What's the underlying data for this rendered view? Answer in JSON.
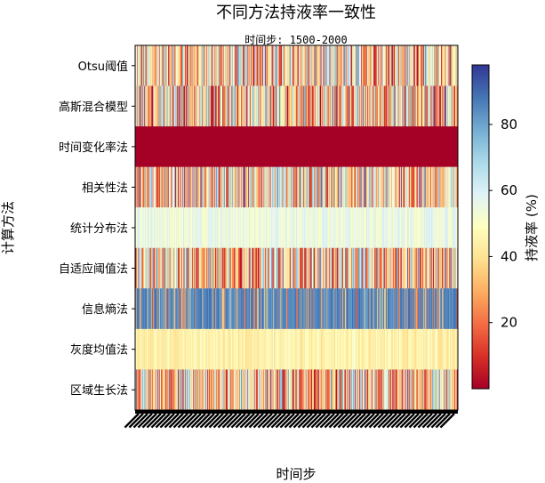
{
  "chart_data": {
    "type": "heatmap",
    "title": "不同方法持液率一致性",
    "subtitle": "时间步: 1500-2000",
    "xlabel": "时间步",
    "ylabel": "计算方法",
    "x_range": [
      1500,
      2000
    ],
    "rows": [
      {
        "label": "Otsu阈值",
        "pattern": "noisy",
        "approx_mean": 40
      },
      {
        "label": "高斯混合模型",
        "pattern": "noisy",
        "approx_mean": 40
      },
      {
        "label": "时间变化率法",
        "pattern": "uniform",
        "approx_mean": 0
      },
      {
        "label": "相关性法",
        "pattern": "noisy",
        "approx_mean": 40
      },
      {
        "label": "统计分布法",
        "pattern": "smooth",
        "approx_mean": 55
      },
      {
        "label": "自适应阈值法",
        "pattern": "noisy",
        "approx_mean": 40
      },
      {
        "label": "信息熵法",
        "pattern": "bimodal",
        "approx_mean": 85
      },
      {
        "label": "灰度均值法",
        "pattern": "smooth",
        "approx_mean": 45
      },
      {
        "label": "区域生长法",
        "pattern": "noisy",
        "approx_mean": 40
      }
    ],
    "colorbar": {
      "label": "持液率 (%)",
      "ticks": [
        20,
        40,
        60,
        80
      ],
      "range": [
        0,
        98
      ],
      "colormap": "RdYlBu",
      "colors": [
        "#a50026",
        "#d73027",
        "#f46d43",
        "#fdae61",
        "#fee090",
        "#ffffbf",
        "#e0f3f8",
        "#abd9e9",
        "#74add1",
        "#4575b4",
        "#313695"
      ]
    }
  }
}
